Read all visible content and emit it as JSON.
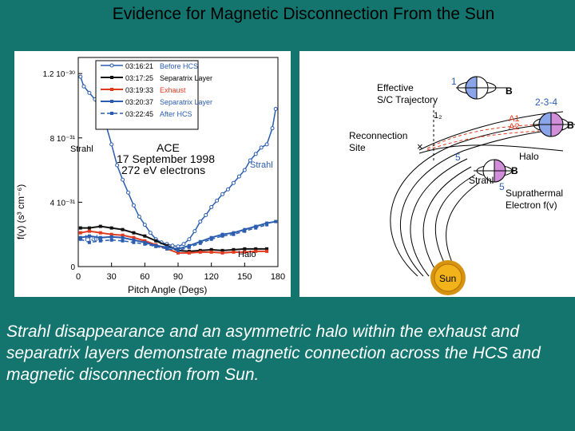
{
  "slide": {
    "title": "Evidence for Magnetic Disconnection From the Sun",
    "caption": "Strahl disappearance and an asymmetric halo within the exhaust and separatrix layers demonstrate magnetic connection across the HCS and magnetic disconnection from Sun."
  },
  "colors": {
    "background": "#13756e",
    "before_hcs": "#2a5db0",
    "separatrix_1": "#111111",
    "exhaust": "#e23a1f",
    "separatrix_2": "#2a5db0",
    "after_hcs": "#2a5db0",
    "sun": "#f2b21a"
  },
  "chart_data": {
    "type": "line",
    "xlabel": "Pitch Angle (Degs)",
    "ylabel": "f(v) (s³ cm⁻⁶)",
    "xlim": [
      0,
      180
    ],
    "ylim": [
      0,
      1.3e-30
    ],
    "x_ticks": [
      "0",
      "30",
      "60",
      "90",
      "120",
      "150",
      "180"
    ],
    "y_ticks": [
      {
        "value": 0,
        "label": "0"
      },
      {
        "value": 4e-31,
        "label": "4 10⁻³¹"
      },
      {
        "value": 8e-31,
        "label": "8 10⁻³¹"
      },
      {
        "value": 1.2e-30,
        "label": "1.2 10⁻³⁰"
      }
    ],
    "annotation": [
      "ACE",
      "17 September 1998",
      "272 eV electrons"
    ],
    "labels": {
      "strahl_left": "Strahl",
      "strahl_right": "Strahl",
      "halo_left": "Halo",
      "halo_right": "Halo"
    },
    "legend_position": "top-left",
    "series": [
      {
        "name": "Before HCS",
        "time": "03:16:21",
        "style": "blue-open",
        "x": [
          2,
          5,
          10,
          15,
          20,
          25,
          30,
          35,
          40,
          45,
          50,
          55,
          60,
          65,
          70,
          75,
          80,
          85,
          90,
          95,
          100,
          105,
          110,
          115,
          120,
          125,
          130,
          135,
          140,
          145,
          150,
          155,
          160,
          165,
          170,
          175,
          178
        ],
        "y": [
          1.18e-30,
          1.12e-30,
          1.08e-30,
          1.04e-30,
          9.5e-31,
          8.8e-31,
          7.6e-31,
          6.3e-31,
          5.4e-31,
          4.6e-31,
          3.8e-31,
          3.1e-31,
          2.6e-31,
          2.1e-31,
          1.7e-31,
          1.5e-31,
          1.4e-31,
          1.3e-31,
          1.25e-31,
          1.4e-31,
          1.7e-31,
          2.2e-31,
          2.8e-31,
          3.2e-31,
          3.7e-31,
          4.1e-31,
          4.5e-31,
          4.8e-31,
          5.2e-31,
          5.6e-31,
          6e-31,
          6.6e-31,
          7e-31,
          7.4e-31,
          7.6e-31,
          8.6e-31,
          9.8e-31
        ]
      },
      {
        "name": "Separatrix Layer",
        "time": "03:17:25",
        "style": "black",
        "x": [
          2,
          10,
          20,
          30,
          40,
          50,
          60,
          70,
          80,
          90,
          100,
          110,
          120,
          130,
          140,
          150,
          160,
          170
        ],
        "y": [
          2.4e-31,
          2.4e-31,
          2.5e-31,
          2.4e-31,
          2.3e-31,
          2.1e-31,
          1.9e-31,
          1.6e-31,
          1.3e-31,
          1e-31,
          9.5e-32,
          1e-31,
          1.05e-31,
          1e-31,
          1.05e-31,
          1.1e-31,
          1.1e-31,
          1.1e-31
        ]
      },
      {
        "name": "Exhaust",
        "time": "03:19:33",
        "style": "red",
        "x": [
          2,
          10,
          20,
          30,
          40,
          50,
          60,
          70,
          80,
          90,
          100,
          110,
          120,
          130,
          140,
          150,
          160,
          170
        ],
        "y": [
          2.1e-31,
          2.2e-31,
          2.1e-31,
          2e-31,
          1.95e-31,
          1.8e-31,
          1.6e-31,
          1.35e-31,
          1.1e-31,
          8.5e-32,
          8.5e-32,
          9e-32,
          9e-32,
          8.5e-32,
          9e-32,
          9e-32,
          9.5e-32,
          9.5e-32
        ]
      },
      {
        "name": "Separatrix Layer",
        "time": "03:20:37",
        "style": "blue-solid",
        "x": [
          2,
          10,
          20,
          30,
          40,
          50,
          60,
          70,
          80,
          90,
          100,
          110,
          120,
          130,
          140,
          150,
          160,
          170,
          178
        ],
        "y": [
          1.8e-31,
          1.9e-31,
          1.8e-31,
          1.85e-31,
          1.8e-31,
          1.65e-31,
          1.5e-31,
          1.3e-31,
          1.2e-31,
          1.1e-31,
          1.3e-31,
          1.55e-31,
          1.8e-31,
          2e-31,
          2.1e-31,
          2.3e-31,
          2.5e-31,
          2.7e-31,
          2.8e-31
        ]
      },
      {
        "name": "After HCS",
        "time": "03:22:45",
        "style": "blue-dashed",
        "x": [
          2,
          10,
          20,
          30,
          40,
          50,
          60,
          70,
          80,
          90,
          100,
          110,
          120,
          130,
          140,
          150,
          160,
          170
        ],
        "y": [
          1.7e-31,
          1.5e-31,
          1.6e-31,
          1.65e-31,
          1.6e-31,
          1.5e-31,
          1.4e-31,
          1.25e-31,
          1.1e-31,
          1e-31,
          1.2e-31,
          1.45e-31,
          1.7e-31,
          1.9e-31,
          2e-31,
          2.2e-31,
          2.4e-31,
          2.6e-31
        ]
      }
    ]
  },
  "diagram": {
    "labels": {
      "trajectory": [
        "Effective",
        "S/C Trajectory"
      ],
      "reconnection": [
        "Reconnection",
        "Site"
      ],
      "num_1": "1",
      "num_12": "1₂",
      "num_234": "2-3-4",
      "num_5a": "5",
      "num_5b": "5",
      "a1": "A1",
      "a2": "A2",
      "b1": "B",
      "b2": "B",
      "b3": "B",
      "halo": "Halo",
      "strahl": "Strahl",
      "suprathermal": [
        "Suprathermal",
        "Electron f(v)"
      ],
      "sun": "Sun"
    }
  }
}
